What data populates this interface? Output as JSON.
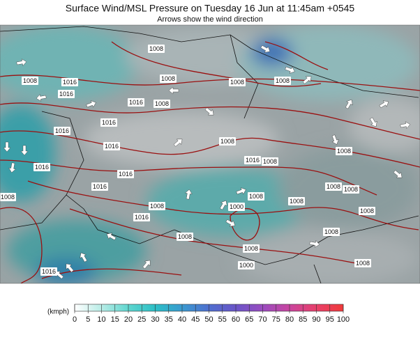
{
  "header": {
    "title": "Surface Wind/MSL Pressure on Tuesday 16 Jun at 11:45am +0545",
    "subtitle": "Arrows show the wind direction"
  },
  "isobar_labels": [
    1008,
    1008,
    1016,
    1016,
    1008,
    1016,
    1008,
    1008,
    1008,
    1016,
    1016,
    1016,
    1016,
    1016,
    1016,
    1008,
    1016,
    1008,
    1008,
    1008,
    1008,
    1008,
    1008,
    1008,
    1000,
    1008,
    1008,
    1016,
    1008,
    1008,
    1000,
    1008,
    1016,
    1008
  ],
  "colorbar": {
    "unit": "(kmph)",
    "ticks": [
      0,
      5,
      10,
      15,
      20,
      25,
      30,
      35,
      40,
      45,
      50,
      55,
      60,
      65,
      70,
      75,
      80,
      85,
      90,
      95,
      100
    ],
    "colors": [
      "#ffffff",
      "#b8ece6",
      "#5fd6cf",
      "#2cbfc6",
      "#3a9ad0",
      "#4f6fcf",
      "#6a55c8",
      "#9a4cc0",
      "#c9459f",
      "#e8406a",
      "#f03a3a"
    ]
  }
}
